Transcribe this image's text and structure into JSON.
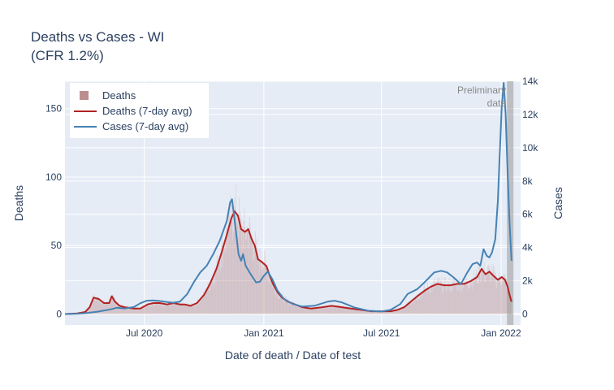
{
  "title": "Deaths vs Cases - WI",
  "subtitle": "(CFR 1.2%)",
  "annotation": {
    "line1": "Preliminary",
    "line2": "data"
  },
  "colors": {
    "plot_bg": "#e5ecf6",
    "deaths_bar": "#bc8f8f",
    "deaths_avg": "#b22222",
    "cases_avg": "#4682b4",
    "prelim_band": "#a0a0a0"
  },
  "chart_data": {
    "type": "line",
    "xlabel": "Date of death / Date of test",
    "ylabel": "Deaths",
    "y2label": "Cases",
    "x_range": [
      "2020-03-01",
      "2022-01-31"
    ],
    "x_ticks": [
      {
        "date": "2020-07-01",
        "label": "Jul 2020"
      },
      {
        "date": "2021-01-01",
        "label": "Jan 2021"
      },
      {
        "date": "2021-07-01",
        "label": "Jul 2021"
      },
      {
        "date": "2022-01-01",
        "label": "Jan 2022"
      }
    ],
    "ylim": [
      -8,
      170
    ],
    "y_ticks": [
      0,
      50,
      100,
      150
    ],
    "y2lim": [
      -660,
      14000
    ],
    "y2_ticks": [
      0,
      2000,
      4000,
      6000,
      8000,
      10000,
      12000,
      14000
    ],
    "y2_tick_labels": [
      "0",
      "2k",
      "4k",
      "6k",
      "8k",
      "10k",
      "12k",
      "14k"
    ],
    "prelim_range": [
      "2022-01-10",
      "2022-01-17"
    ],
    "legend": [
      {
        "name": "Deaths",
        "kind": "bar"
      },
      {
        "name": "Deaths (7-day avg)",
        "kind": "line"
      },
      {
        "name": "Cases (7-day avg)",
        "kind": "line"
      }
    ],
    "series": [
      {
        "name": "Deaths (7-day avg)",
        "axis": "y",
        "points": [
          [
            "2020-03-01",
            0
          ],
          [
            "2020-03-20",
            0.5
          ],
          [
            "2020-04-01",
            1.5
          ],
          [
            "2020-04-08",
            5
          ],
          [
            "2020-04-14",
            12
          ],
          [
            "2020-04-22",
            11
          ],
          [
            "2020-04-30",
            8
          ],
          [
            "2020-05-08",
            8
          ],
          [
            "2020-05-12",
            13
          ],
          [
            "2020-05-17",
            9
          ],
          [
            "2020-05-24",
            6
          ],
          [
            "2020-06-01",
            5
          ],
          [
            "2020-06-15",
            4
          ],
          [
            "2020-06-25",
            4
          ],
          [
            "2020-07-06",
            7
          ],
          [
            "2020-07-15",
            8
          ],
          [
            "2020-07-25",
            8
          ],
          [
            "2020-08-05",
            7
          ],
          [
            "2020-08-15",
            8
          ],
          [
            "2020-08-25",
            7
          ],
          [
            "2020-09-01",
            7
          ],
          [
            "2020-09-10",
            6
          ],
          [
            "2020-09-20",
            8
          ],
          [
            "2020-10-01",
            14
          ],
          [
            "2020-10-10",
            22
          ],
          [
            "2020-10-20",
            33
          ],
          [
            "2020-10-28",
            45
          ],
          [
            "2020-11-05",
            58
          ],
          [
            "2020-11-12",
            70
          ],
          [
            "2020-11-17",
            75
          ],
          [
            "2020-11-22",
            72
          ],
          [
            "2020-11-27",
            62
          ],
          [
            "2020-12-03",
            60
          ],
          [
            "2020-12-08",
            62
          ],
          [
            "2020-12-13",
            55
          ],
          [
            "2020-12-18",
            50
          ],
          [
            "2020-12-23",
            40
          ],
          [
            "2020-12-29",
            38
          ],
          [
            "2021-01-05",
            35
          ],
          [
            "2021-01-10",
            28
          ],
          [
            "2021-01-15",
            22
          ],
          [
            "2021-01-22",
            16
          ],
          [
            "2021-01-29",
            12
          ],
          [
            "2021-02-07",
            9
          ],
          [
            "2021-02-18",
            7
          ],
          [
            "2021-03-01",
            5
          ],
          [
            "2021-03-15",
            4
          ],
          [
            "2021-04-01",
            5
          ],
          [
            "2021-04-15",
            6
          ],
          [
            "2021-05-01",
            5
          ],
          [
            "2021-05-15",
            4
          ],
          [
            "2021-06-01",
            3
          ],
          [
            "2021-06-15",
            2
          ],
          [
            "2021-07-01",
            2
          ],
          [
            "2021-07-15",
            2
          ],
          [
            "2021-07-25",
            3
          ],
          [
            "2021-08-05",
            5
          ],
          [
            "2021-08-15",
            9
          ],
          [
            "2021-08-25",
            13
          ],
          [
            "2021-09-05",
            17
          ],
          [
            "2021-09-15",
            20
          ],
          [
            "2021-09-25",
            22
          ],
          [
            "2021-10-05",
            21
          ],
          [
            "2021-10-15",
            21
          ],
          [
            "2021-10-25",
            22
          ],
          [
            "2021-11-05",
            22
          ],
          [
            "2021-11-15",
            24
          ],
          [
            "2021-11-25",
            27
          ],
          [
            "2021-12-02",
            33
          ],
          [
            "2021-12-08",
            29
          ],
          [
            "2021-12-14",
            31
          ],
          [
            "2021-12-20",
            28
          ],
          [
            "2021-12-27",
            25
          ],
          [
            "2022-01-02",
            27
          ],
          [
            "2022-01-07",
            25
          ],
          [
            "2022-01-11",
            20
          ],
          [
            "2022-01-14",
            14
          ],
          [
            "2022-01-17",
            9
          ]
        ]
      },
      {
        "name": "Cases (7-day avg)",
        "axis": "y2",
        "points": [
          [
            "2020-03-01",
            0
          ],
          [
            "2020-03-20",
            20
          ],
          [
            "2020-04-01",
            50
          ],
          [
            "2020-04-20",
            140
          ],
          [
            "2020-05-10",
            280
          ],
          [
            "2020-05-20",
            380
          ],
          [
            "2020-06-01",
            330
          ],
          [
            "2020-06-15",
            420
          ],
          [
            "2020-06-25",
            650
          ],
          [
            "2020-07-05",
            800
          ],
          [
            "2020-07-15",
            820
          ],
          [
            "2020-07-25",
            780
          ],
          [
            "2020-08-05",
            720
          ],
          [
            "2020-08-15",
            680
          ],
          [
            "2020-08-25",
            750
          ],
          [
            "2020-09-05",
            1200
          ],
          [
            "2020-09-15",
            1900
          ],
          [
            "2020-09-25",
            2500
          ],
          [
            "2020-10-05",
            2900
          ],
          [
            "2020-10-15",
            3600
          ],
          [
            "2020-10-25",
            4400
          ],
          [
            "2020-11-05",
            5600
          ],
          [
            "2020-11-10",
            6700
          ],
          [
            "2020-11-13",
            6900
          ],
          [
            "2020-11-18",
            5300
          ],
          [
            "2020-11-23",
            3600
          ],
          [
            "2020-11-27",
            3200
          ],
          [
            "2020-11-30",
            3600
          ],
          [
            "2020-12-04",
            2900
          ],
          [
            "2020-12-10",
            2500
          ],
          [
            "2020-12-15",
            2200
          ],
          [
            "2020-12-20",
            1900
          ],
          [
            "2020-12-26",
            1950
          ],
          [
            "2021-01-01",
            2300
          ],
          [
            "2021-01-07",
            2550
          ],
          [
            "2021-01-14",
            2100
          ],
          [
            "2021-01-22",
            1400
          ],
          [
            "2021-02-01",
            900
          ],
          [
            "2021-02-15",
            600
          ],
          [
            "2021-03-01",
            450
          ],
          [
            "2021-03-20",
            500
          ],
          [
            "2021-04-10",
            750
          ],
          [
            "2021-04-20",
            800
          ],
          [
            "2021-05-01",
            700
          ],
          [
            "2021-05-20",
            400
          ],
          [
            "2021-06-10",
            200
          ],
          [
            "2021-07-01",
            150
          ],
          [
            "2021-07-15",
            250
          ],
          [
            "2021-07-30",
            600
          ],
          [
            "2021-08-10",
            1200
          ],
          [
            "2021-08-25",
            1500
          ],
          [
            "2021-09-05",
            1900
          ],
          [
            "2021-09-20",
            2500
          ],
          [
            "2021-10-01",
            2600
          ],
          [
            "2021-10-10",
            2500
          ],
          [
            "2021-10-20",
            2200
          ],
          [
            "2021-10-31",
            1800
          ],
          [
            "2021-11-10",
            2500
          ],
          [
            "2021-11-18",
            3000
          ],
          [
            "2021-11-25",
            3100
          ],
          [
            "2021-11-30",
            2900
          ],
          [
            "2021-12-05",
            3900
          ],
          [
            "2021-12-10",
            3500
          ],
          [
            "2021-12-14",
            3400
          ],
          [
            "2021-12-18",
            3700
          ],
          [
            "2021-12-23",
            4500
          ],
          [
            "2021-12-27",
            6800
          ],
          [
            "2021-12-30",
            9700
          ],
          [
            "2022-01-02",
            12500
          ],
          [
            "2022-01-05",
            13900
          ],
          [
            "2022-01-08",
            12000
          ],
          [
            "2022-01-11",
            8500
          ],
          [
            "2022-01-14",
            5500
          ],
          [
            "2022-01-17",
            3200
          ]
        ]
      }
    ]
  }
}
